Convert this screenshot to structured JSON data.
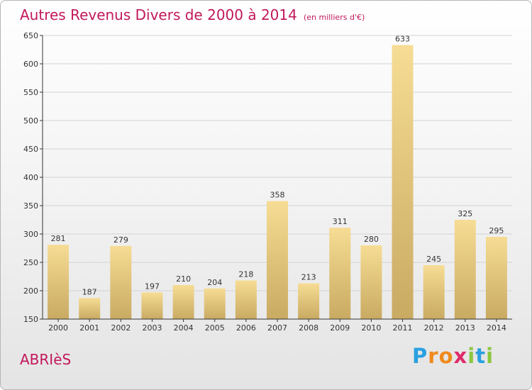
{
  "chart_data": {
    "type": "bar",
    "title": "Autres Revenus Divers de 2000 à 2014",
    "subtitle": "(en milliers d'€)",
    "categories": [
      "2000",
      "2001",
      "2002",
      "2003",
      "2004",
      "2005",
      "2006",
      "2007",
      "2008",
      "2009",
      "2010",
      "2011",
      "2012",
      "2013",
      "2014"
    ],
    "values": [
      281,
      187,
      279,
      197,
      210,
      204,
      218,
      358,
      213,
      311,
      280,
      633,
      245,
      325,
      295
    ],
    "ylim": [
      150,
      650
    ],
    "yticks": [
      150,
      200,
      250,
      300,
      350,
      400,
      450,
      500,
      550,
      600,
      650
    ],
    "grid": true,
    "bar_color": "#e8c66a"
  },
  "footer": {
    "town": "ABRIèS",
    "logo": [
      "P",
      "r",
      "o",
      "x",
      "i",
      "t",
      "i"
    ]
  }
}
